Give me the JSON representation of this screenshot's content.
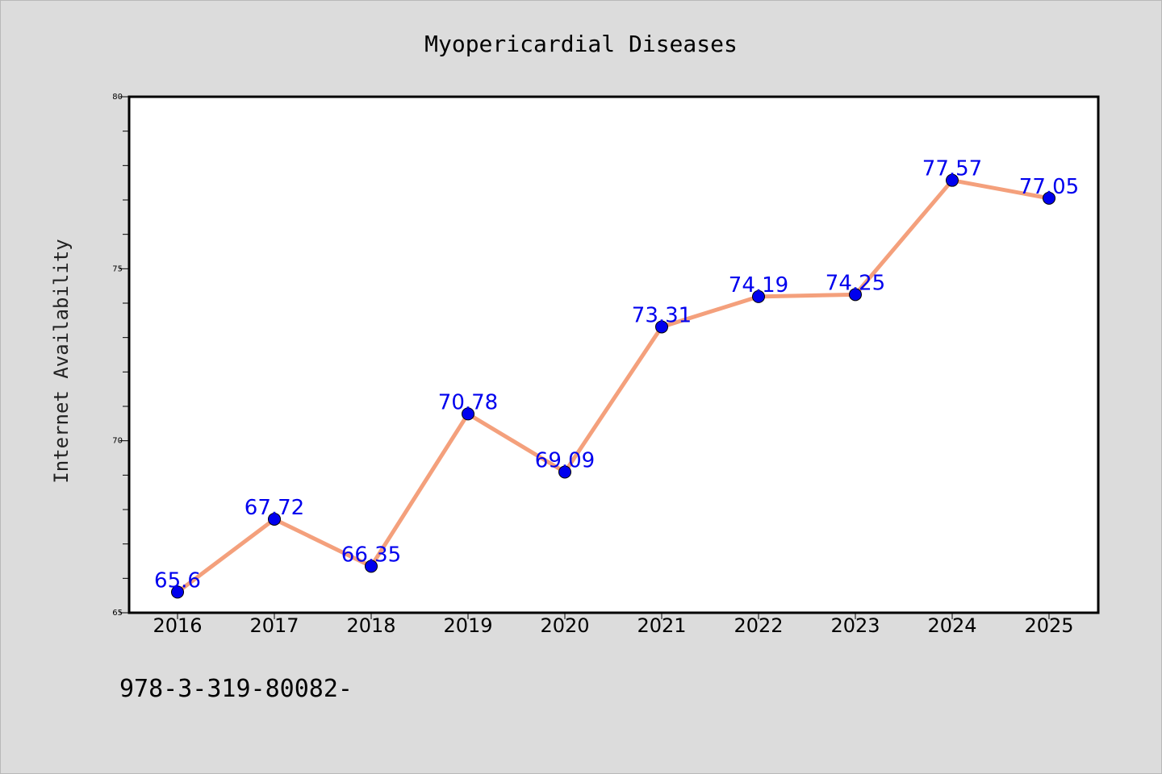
{
  "chart_data": {
    "type": "line",
    "title": "Myopericardial Diseases",
    "ylabel": "Internet Availability",
    "xlabel": "",
    "categories": [
      "2016",
      "2017",
      "2018",
      "2019",
      "2020",
      "2021",
      "2022",
      "2023",
      "2024",
      "2025"
    ],
    "series": [
      {
        "values": [
          65.6,
          67.72,
          66.35,
          70.78,
          69.09,
          73.31,
          74.19,
          74.25,
          77.57,
          77.05
        ],
        "labels": [
          "65.6",
          "67.72",
          "66.35",
          "70.78",
          "69.09",
          "73.31",
          "74.19",
          "74.25",
          "77.57",
          "77.05"
        ]
      }
    ],
    "ylim": [
      65,
      80
    ],
    "yticks": [
      65,
      70,
      75,
      80
    ],
    "ytick_labels": [
      "65",
      "70",
      "75",
      "80"
    ],
    "grid": false,
    "legend": "none"
  },
  "footnote": "978-3-319-80082-",
  "colors": {
    "background": "#dcdcdc",
    "plot_background": "#ffffff",
    "line": "#f4a07c",
    "marker": "#0000ee",
    "data_label": "#0000ee"
  }
}
